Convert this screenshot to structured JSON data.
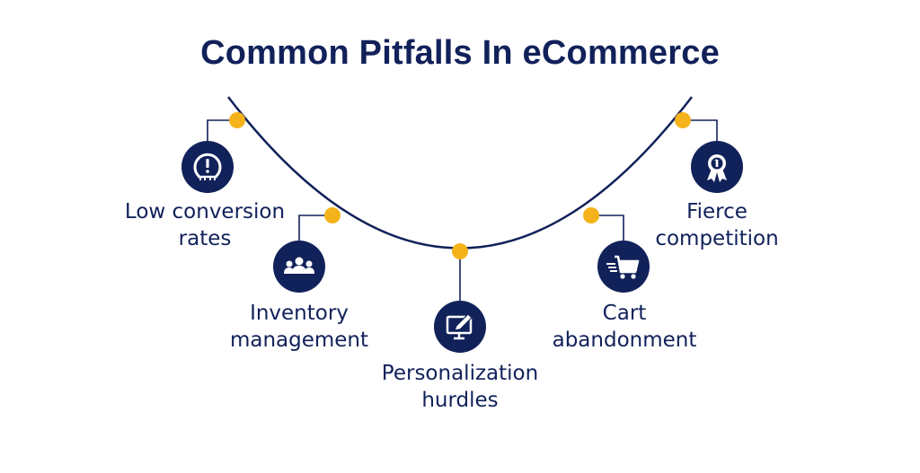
{
  "title": "Common Pitfalls In eCommerce",
  "colors": {
    "navy": "#11215a",
    "dot": "#f5b31b",
    "background": "#ffffff"
  },
  "pitfalls": [
    {
      "line1": "Low conversion",
      "line2": "rates",
      "icon": "tire-pressure-warning-icon"
    },
    {
      "line1": "Inventory",
      "line2": "management",
      "icon": "people-group-icon"
    },
    {
      "line1": "Personalization",
      "line2": "hurdles",
      "icon": "monitor-edit-icon"
    },
    {
      "line1": "Cart",
      "line2": "abandonment",
      "icon": "fast-shopping-cart-icon"
    },
    {
      "line1": "Fierce",
      "line2": "competition",
      "icon": "award-badge-icon"
    }
  ]
}
